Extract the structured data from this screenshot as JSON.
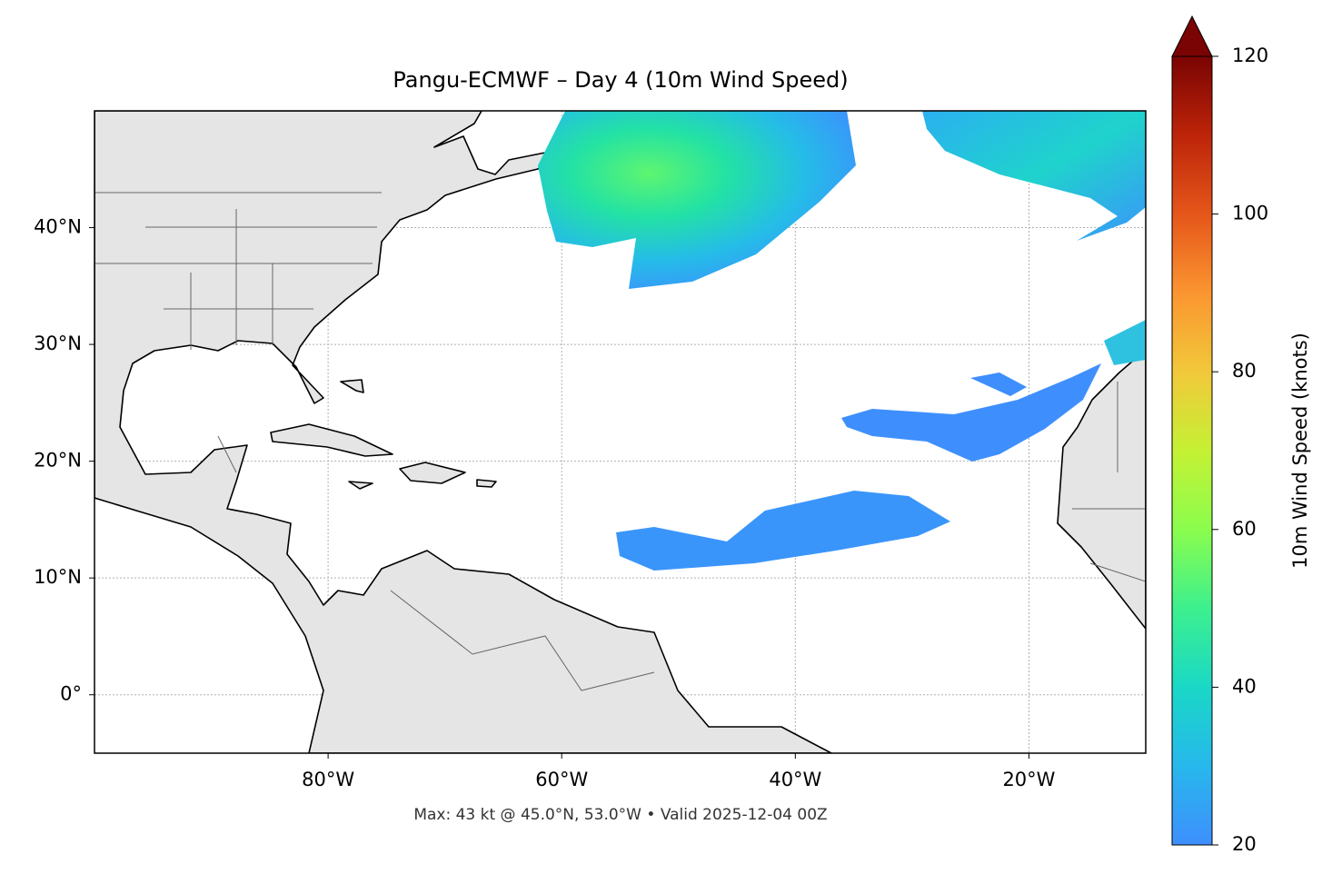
{
  "chart_data": {
    "type": "map",
    "title": "Pangu-ECMWF – Day 4 (10m Wind Speed)",
    "xlim": [
      -100,
      -10
    ],
    "ylim": [
      -5,
      50
    ],
    "xticks": [
      {
        "value": -80,
        "label": "80°W"
      },
      {
        "value": -60,
        "label": "60°W"
      },
      {
        "value": -40,
        "label": "40°W"
      },
      {
        "value": -20,
        "label": "20°W"
      }
    ],
    "yticks": [
      {
        "value": 0,
        "label": "0°"
      },
      {
        "value": 10,
        "label": "10°N"
      },
      {
        "value": 20,
        "label": "20°N"
      },
      {
        "value": 30,
        "label": "30°N"
      },
      {
        "value": 40,
        "label": "40°N"
      }
    ],
    "grid": true,
    "annotation": "Max: 43 kt @ 45.0°N, 53.0°W • Valid 2025-12-04 00Z",
    "colorbar": {
      "label": "10m Wind Speed (knots)",
      "lim": [
        20,
        120
      ],
      "ticks": [
        20,
        40,
        60,
        80,
        100,
        120
      ],
      "extend": "max"
    }
  }
}
